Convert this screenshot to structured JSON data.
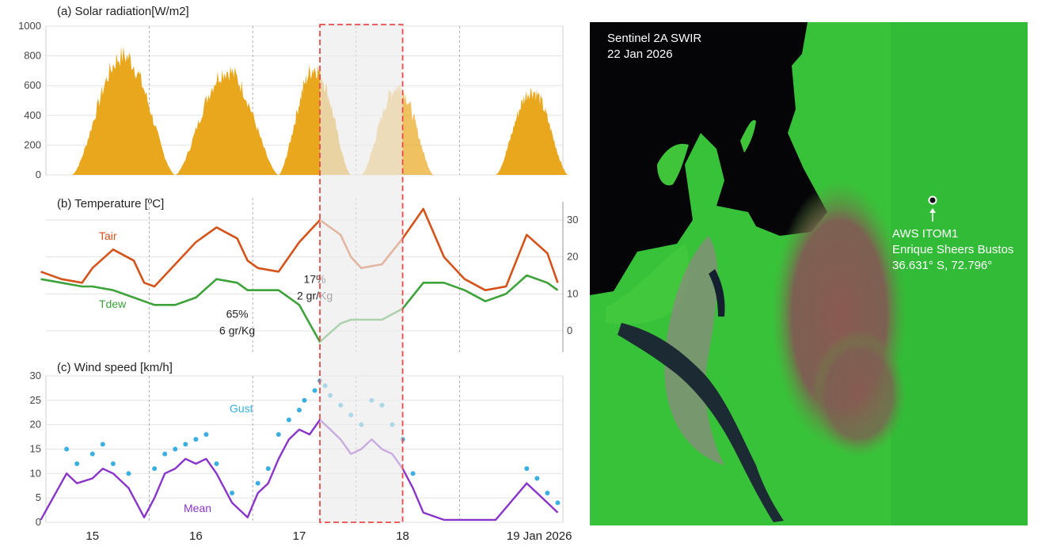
{
  "x_ticks": [
    {
      "label": "15",
      "t": 15.0
    },
    {
      "label": "16",
      "t": 16.0
    },
    {
      "label": "17",
      "t": 17.0
    },
    {
      "label": "18",
      "t": 18.0
    },
    {
      "label": "19  Jan 2026",
      "t": 19.0
    }
  ],
  "chart_data": [
    {
      "type": "area",
      "title": "(a) Solar radiation[W/m2]",
      "xlabel": "",
      "ylabel": "",
      "ylim": [
        0,
        1000
      ],
      "yticks": [
        0,
        200,
        400,
        600,
        800,
        1000
      ],
      "grid": true,
      "days": [
        {
          "day": 14,
          "noon": 15.3,
          "peak": 880,
          "x_range": [
            14.8,
            15.8
          ]
        },
        {
          "day": 15,
          "noon": 16.3,
          "peak": 770,
          "x_range": [
            15.8,
            16.8
          ]
        },
        {
          "day": 16,
          "noon": 17.3,
          "peak": 790,
          "x_range": [
            16.8,
            17.5
          ],
          "note": "peak shown slightly lower near boundary"
        },
        {
          "day": 17,
          "noon": 18.1,
          "peak": 650,
          "x_range": [
            17.6,
            18.3
          ]
        },
        {
          "day": 18,
          "noon": 19.2,
          "peak": 620,
          "x_range": [
            18.9,
            19.6
          ]
        }
      ]
    },
    {
      "type": "line",
      "title": "(b) Temperature [ºC]",
      "xlabel": "",
      "ylabel": "",
      "ylim": [
        -6,
        36
      ],
      "yticks": [
        0,
        10,
        20,
        30
      ],
      "grid": true,
      "series": [
        {
          "name": "Tair",
          "color": "#d4531b",
          "x": [
            14.5,
            14.7,
            14.9,
            15.0,
            15.2,
            15.4,
            15.5,
            15.6,
            15.8,
            16.0,
            16.2,
            16.4,
            16.5,
            16.6,
            16.8,
            17.0,
            17.2,
            17.4,
            17.5,
            17.6,
            17.8,
            18.0,
            18.2,
            18.4,
            18.6,
            18.8,
            19.0,
            19.2,
            19.4,
            19.5
          ],
          "y": [
            16,
            14,
            13,
            17,
            22,
            19,
            13,
            12,
            18,
            24,
            28,
            25,
            19,
            17,
            16,
            24,
            30,
            26,
            20,
            17,
            18,
            25,
            33,
            20,
            14,
            11,
            12,
            26,
            21,
            13
          ]
        },
        {
          "name": "Tdew",
          "color": "#3ea23a",
          "x": [
            14.5,
            14.7,
            14.9,
            15.0,
            15.2,
            15.4,
            15.5,
            15.6,
            15.8,
            16.0,
            16.2,
            16.4,
            16.5,
            16.6,
            16.8,
            17.0,
            17.1,
            17.2,
            17.4,
            17.5,
            17.6,
            17.8,
            18.0,
            18.2,
            18.4,
            18.6,
            18.8,
            19.0,
            19.2,
            19.4,
            19.5
          ],
          "y": [
            14,
            13,
            12,
            12,
            11,
            9,
            8,
            7,
            7,
            9,
            14,
            13,
            11,
            11,
            11,
            7,
            2,
            -3,
            2,
            3,
            3,
            3,
            6,
            13,
            13,
            11,
            8,
            10,
            15,
            13,
            11
          ]
        }
      ],
      "annotations": [
        {
          "text": "65%",
          "t": 16.4,
          "v": 3.5
        },
        {
          "text": "6 gr/Kg",
          "t": 16.4,
          "v": -1
        },
        {
          "text": "17%",
          "t": 17.15,
          "v": 13
        },
        {
          "text": "2 gr/Kg",
          "t": 17.15,
          "v": 8.5
        }
      ]
    },
    {
      "type": "scatter",
      "title": "(c) Wind speed [km/h]",
      "xlabel": "",
      "ylabel": "",
      "ylim": [
        0,
        30
      ],
      "yticks": [
        0,
        5,
        10,
        15,
        20,
        25,
        30
      ],
      "grid": true,
      "series": [
        {
          "name": "Gust",
          "color": "#3aafe0",
          "x": [
            14.75,
            14.85,
            15.0,
            15.1,
            15.2,
            15.35,
            15.6,
            15.7,
            15.8,
            15.9,
            16.0,
            16.1,
            16.2,
            16.35,
            16.6,
            16.7,
            16.8,
            16.9,
            17.0,
            17.05,
            17.15,
            17.2,
            17.25,
            17.3,
            17.4,
            17.5,
            17.6,
            17.7,
            17.8,
            17.9,
            18.0,
            18.1,
            19.2,
            19.3,
            19.4,
            19.5
          ],
          "y": [
            15,
            12,
            14,
            16,
            12,
            10,
            11,
            14,
            15,
            16,
            17,
            18,
            12,
            6,
            8,
            11,
            18,
            21,
            23,
            25,
            27,
            29,
            28,
            26,
            24,
            22,
            20,
            25,
            24,
            20,
            17,
            10,
            11,
            9,
            6,
            4
          ]
        },
        {
          "name": "Mean",
          "color": "#8a35c9",
          "x": [
            14.5,
            14.75,
            14.85,
            15.0,
            15.1,
            15.2,
            15.35,
            15.5,
            15.6,
            15.7,
            15.8,
            15.9,
            16.0,
            16.1,
            16.2,
            16.35,
            16.5,
            16.6,
            16.7,
            16.8,
            16.9,
            17.0,
            17.1,
            17.2,
            17.3,
            17.4,
            17.5,
            17.6,
            17.7,
            17.8,
            17.9,
            18.0,
            18.1,
            18.2,
            18.4,
            18.9,
            19.2,
            19.3,
            19.4,
            19.5
          ],
          "y": [
            0.5,
            10,
            8,
            9,
            11,
            10,
            7,
            1,
            5,
            10,
            11,
            13,
            12,
            13,
            10,
            4,
            1,
            6,
            8,
            13,
            17,
            19,
            18,
            21,
            19,
            17,
            14,
            15,
            17,
            15,
            14,
            11,
            7,
            2,
            0.5,
            0.5,
            8,
            6,
            4,
            2
          ]
        }
      ]
    }
  ],
  "highlight_region": {
    "t_start": 17.2,
    "t_end": 18.0,
    "fill": "#ebebeb",
    "stroke": "#e84a4a"
  },
  "satellite": {
    "title_line1": "Sentinel 2A SWIR",
    "title_line2": "22 Jan 2026",
    "station_name": "AWS ITOM1",
    "station_owner": "Enrique Sheers Bustos",
    "station_coords": "36.631° S, 72.796°"
  },
  "colors": {
    "solar": "#e8a71c",
    "tair": "#d4531b",
    "tdew": "#3ea23a",
    "gust": "#3aafe0",
    "mean": "#8a35c9",
    "water": "#0a0a14",
    "vegetation": "#3ec93a",
    "burn_scar": "#8a5a52"
  }
}
